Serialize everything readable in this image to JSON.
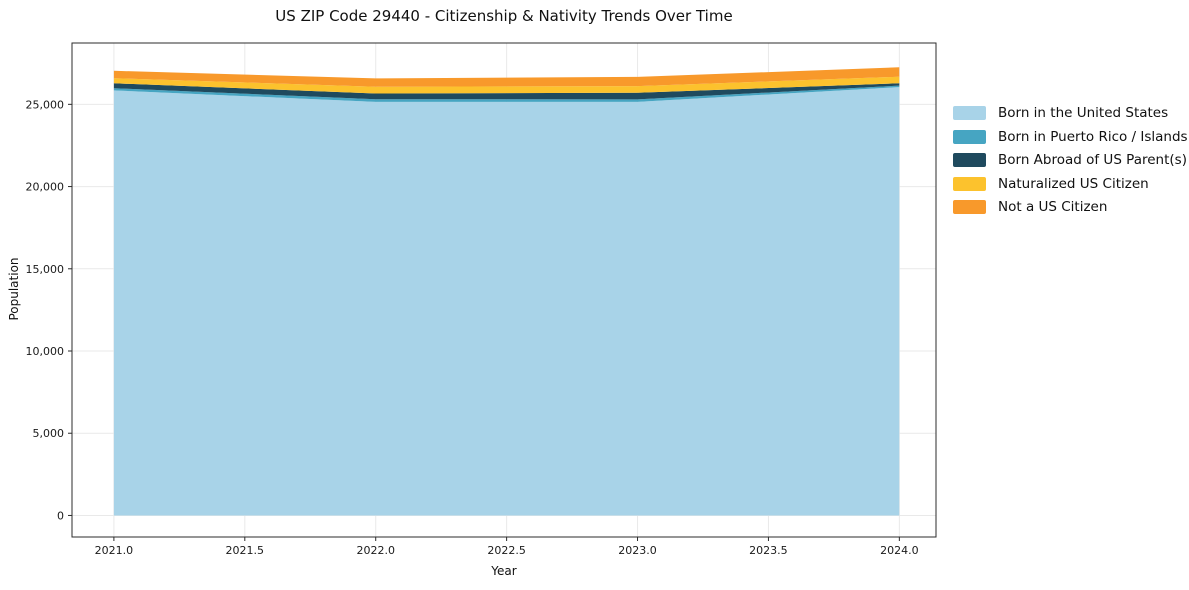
{
  "chart_data": {
    "type": "area",
    "stacked": true,
    "title": "US ZIP Code 29440 - Citizenship & Nativity Trends Over Time",
    "xlabel": "Year",
    "ylabel": "Population",
    "x": [
      2021,
      2022,
      2023,
      2024
    ],
    "series": [
      {
        "label": "Born in the United States",
        "color": "#a8d3e8",
        "values": [
          25850,
          25150,
          25150,
          26050
        ]
      },
      {
        "label": "Born in Puerto Rico / Islands",
        "color": "#46a5c2",
        "values": [
          130,
          160,
          150,
          90
        ]
      },
      {
        "label": "Born Abroad of US Parent(s)",
        "color": "#1f4a5e",
        "values": [
          300,
          350,
          400,
          140
        ]
      },
      {
        "label": "Naturalized US Citizen",
        "color": "#fcc22d",
        "values": [
          310,
          410,
          410,
          400
        ]
      },
      {
        "label": "Not a US Citizen",
        "color": "#f8992b",
        "values": [
          450,
          510,
          560,
          570
        ]
      }
    ],
    "xlim": [
      2020.84,
      2024.14
    ],
    "ylim": [
      -1310,
      28730
    ],
    "x_ticks": {
      "values": [
        2021.0,
        2021.5,
        2022.0,
        2022.5,
        2023.0,
        2023.5,
        2024.0
      ],
      "labels": [
        "2021.0",
        "2021.5",
        "2022.0",
        "2022.5",
        "2023.0",
        "2023.5",
        "2024.0"
      ]
    },
    "y_ticks": {
      "values": [
        0,
        5000,
        10000,
        15000,
        20000,
        25000
      ],
      "labels": [
        "0",
        "5,000",
        "10,000",
        "15,000",
        "20,000",
        "25,000"
      ]
    },
    "grid": true,
    "grid_color": "#e9e9e9",
    "spine_color": "#2b2b2b",
    "tick_label_color": "#1a1a1a",
    "legend_position": "right"
  }
}
